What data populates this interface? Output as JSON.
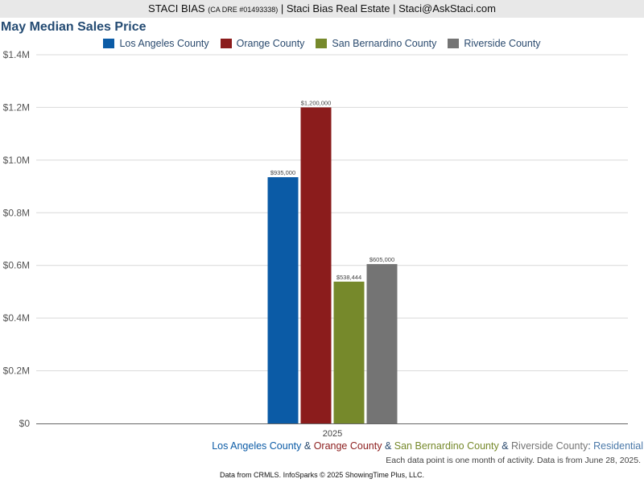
{
  "header": {
    "name": "STACI BIAS",
    "license": "(CA DRE #01493338)",
    "company_sep": " | ",
    "company": "Staci Bias Real Estate",
    "email_sep": " | ",
    "email": "Staci@AskStaci.com"
  },
  "chart_data": {
    "type": "bar",
    "title": "May Median Sales Price",
    "categories": [
      "2025"
    ],
    "series": [
      {
        "name": "Los Angeles County",
        "values": [
          935000
        ],
        "label": "$935,000",
        "color": "#0b5ba6"
      },
      {
        "name": "Orange County",
        "values": [
          1200000
        ],
        "label": "$1,200,000",
        "color": "#8b1c1c"
      },
      {
        "name": "San Bernardino County",
        "values": [
          538444
        ],
        "label": "$538,444",
        "color": "#76892b"
      },
      {
        "name": "Riverside County",
        "values": [
          605000
        ],
        "label": "$605,000",
        "color": "#747474"
      }
    ],
    "ylim": [
      0,
      1400000
    ],
    "yticks": [
      {
        "value": 0,
        "label": "$0"
      },
      {
        "value": 200000,
        "label": "$0.2M"
      },
      {
        "value": 400000,
        "label": "$0.4M"
      },
      {
        "value": 600000,
        "label": "$0.6M"
      },
      {
        "value": 800000,
        "label": "$0.8M"
      },
      {
        "value": 1000000,
        "label": "$1.0M"
      },
      {
        "value": 1200000,
        "label": "$1.2M"
      },
      {
        "value": 1400000,
        "label": "$1.4M"
      }
    ],
    "grid": true,
    "legend_position": "top"
  },
  "footer": {
    "series_text": [
      {
        "text": "Los Angeles County",
        "color": "#0b5ba6"
      },
      {
        "text": " & ",
        "color": "#2a4a6e"
      },
      {
        "text": "Orange County",
        "color": "#8b1c1c"
      },
      {
        "text": " & ",
        "color": "#2a4a6e"
      },
      {
        "text": "San Bernardino County",
        "color": "#76892b"
      },
      {
        "text": " & ",
        "color": "#2a4a6e"
      },
      {
        "text": "Riverside County",
        "color": "#747474"
      },
      {
        "text": ": ",
        "color": "#2a4a6e"
      },
      {
        "text": "Residential",
        "color": "#4a78a8"
      }
    ],
    "note": "Each data point is one month of activity. Data is from June 28, 2025.",
    "credit": "Data from CRMLS. InfoSparks © 2025 ShowingTime Plus, LLC."
  }
}
